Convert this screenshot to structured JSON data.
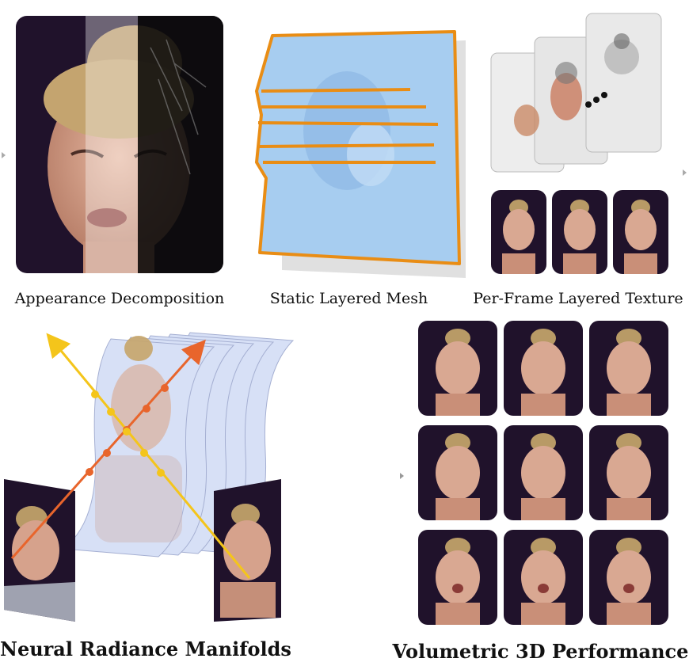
{
  "captions": {
    "appearance": "Appearance Decomposition",
    "mesh": "Static Layered Mesh",
    "texture": "Per-Frame Layered Texture",
    "manifolds": "Neural Radiance Manifolds",
    "performance": "Volumetric 3D Performance"
  },
  "colors": {
    "background_dark": "#20122b",
    "mesh_fill": "#a7cdf0",
    "mesh_outline": "#e98d15",
    "ray_orange": "#e8652c",
    "ray_yellow": "#f4c51b",
    "manifold_layer": "#b8c8f0"
  },
  "icons": {
    "left_marker": "small-triangle-icon",
    "right_marker": "small-triangle-icon"
  }
}
